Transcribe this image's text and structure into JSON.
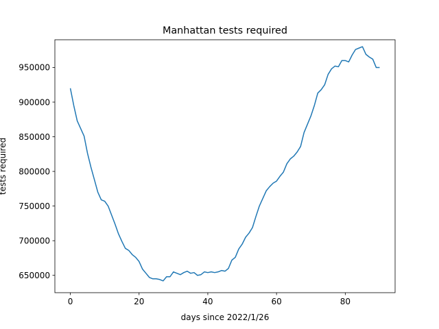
{
  "chart_data": {
    "type": "line",
    "title": "Manhattan tests required",
    "xlabel": "days since 2022/1/26",
    "ylabel": "tests required",
    "xlim": [
      -4.5,
      94.5
    ],
    "ylim": [
      625000,
      990000
    ],
    "xticks": [
      0,
      20,
      40,
      60,
      80
    ],
    "yticks": [
      650000,
      700000,
      750000,
      800000,
      850000,
      900000,
      950000
    ],
    "ytick_labels": [
      "650000",
      "700000",
      "750000",
      "800000",
      "850000",
      "900000",
      "950000"
    ],
    "xtick_labels": [
      "0",
      "20",
      "40",
      "60",
      "80"
    ],
    "grid": false,
    "line_color": "#1f77b4",
    "series": [
      {
        "x": [
          0,
          1,
          2,
          3,
          4,
          5,
          6,
          7,
          8,
          9,
          10,
          11,
          12,
          13,
          14,
          15,
          16,
          17,
          18,
          19,
          20,
          21,
          22,
          23,
          24,
          25,
          26,
          27,
          28,
          29,
          30,
          31,
          32,
          33,
          34,
          35,
          36,
          37,
          38,
          39,
          40,
          41,
          42,
          43,
          44,
          45,
          46,
          47,
          48,
          49,
          50,
          51,
          52,
          53,
          54,
          55,
          56,
          57,
          58,
          59,
          60,
          61,
          62,
          63,
          64,
          65,
          66,
          67,
          68,
          69,
          70,
          71,
          72,
          73,
          74,
          75,
          76,
          77,
          78,
          79,
          80,
          81,
          82,
          83,
          84,
          85,
          86,
          87,
          88,
          89,
          90
        ],
        "values": [
          920000,
          895000,
          873000,
          862000,
          851000,
          826000,
          806000,
          788000,
          770000,
          759000,
          757000,
          750000,
          737000,
          724000,
          710000,
          699000,
          689000,
          686000,
          680000,
          676000,
          670000,
          659000,
          653000,
          647000,
          645000,
          645000,
          644000,
          642000,
          648000,
          648000,
          655000,
          653000,
          651000,
          654000,
          656000,
          653000,
          654000,
          650000,
          651000,
          655000,
          654000,
          655000,
          654000,
          655000,
          657000,
          656000,
          660000,
          672000,
          676000,
          688000,
          695000,
          705000,
          711000,
          719000,
          735000,
          750000,
          761000,
          772000,
          778000,
          783000,
          786000,
          793000,
          799000,
          811000,
          818000,
          822000,
          828000,
          836000,
          856000,
          868000,
          880000,
          895000,
          913000,
          918000,
          925000,
          940000,
          948000,
          952000,
          951000,
          960000,
          960000,
          958000,
          968000,
          976000,
          978000,
          980000,
          969000,
          965000,
          962000,
          950000,
          950000
        ]
      }
    ]
  }
}
